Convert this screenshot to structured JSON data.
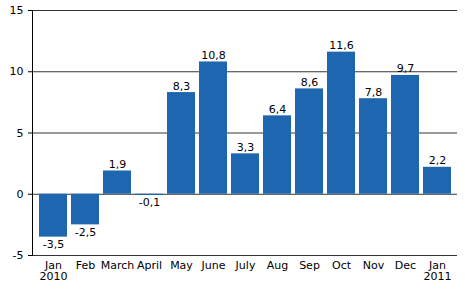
{
  "chart_data": {
    "type": "bar",
    "categories": [
      "Jan\n2010",
      "Feb",
      "March",
      "April",
      "May",
      "June",
      "July",
      "Aug",
      "Sep",
      "Oct",
      "Nov",
      "Dec",
      "Jan\n2011"
    ],
    "values": [
      -3.5,
      -2.5,
      1.9,
      -0.1,
      8.3,
      10.8,
      3.3,
      6.4,
      8.6,
      11.6,
      7.8,
      9.7,
      2.2
    ],
    "value_labels": [
      "-3,5",
      "-2,5",
      "1,9",
      "-0,1",
      "8,3",
      "10,8",
      "3,3",
      "6,4",
      "8,6",
      "11,6",
      "7,8",
      "9,7",
      "2,2"
    ],
    "color": "#1f66b0",
    "ylim": [
      -5,
      15
    ],
    "yticks": [
      -5,
      0,
      5,
      10,
      15
    ],
    "grid": true,
    "data_labels": true
  }
}
